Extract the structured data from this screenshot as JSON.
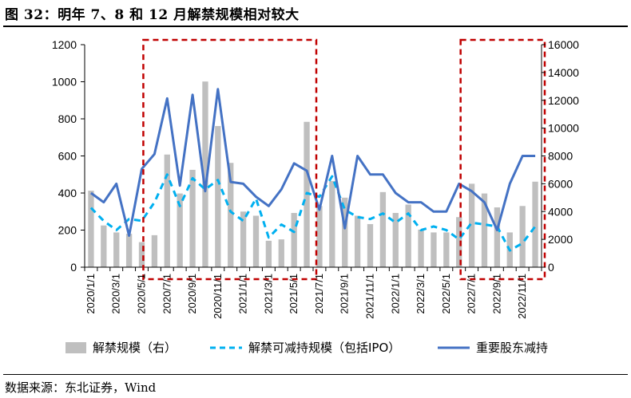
{
  "figure": {
    "title": "图 32：明年 7、8 和 12 月解禁规模相对较大",
    "source": "数据来源：东北证券，Wind"
  },
  "chart_data": {
    "type": "bar+line",
    "title": "明年 7、8 和 12 月解禁规模相对较大",
    "categories": [
      "2020/1/1",
      "2020/2/1",
      "2020/3/1",
      "2020/4/1",
      "2020/5/1",
      "2020/6/1",
      "2020/7/1",
      "2020/8/1",
      "2020/9/1",
      "2020/10/1",
      "2020/11/1",
      "2020/12/1",
      "2021/1/1",
      "2021/2/1",
      "2021/3/1",
      "2021/4/1",
      "2021/5/1",
      "2021/6/1",
      "2021/7/1",
      "2021/8/1",
      "2021/9/1",
      "2021/10/1",
      "2021/11/1",
      "2021/12/1",
      "2022/1/1",
      "2022/2/1",
      "2022/3/1",
      "2022/4/1",
      "2022/5/1",
      "2022/6/1",
      "2022/7/1",
      "2022/8/1",
      "2022/9/1",
      "2022/10/1",
      "2022/11/1",
      "2022/12/1"
    ],
    "x_tick_labels": [
      "2020/1/1",
      "2020/3/1",
      "2020/5/1",
      "2020/7/1",
      "2020/9/1",
      "2020/11/1",
      "2021/1/1",
      "2021/3/1",
      "2021/5/1",
      "2021/7/1",
      "2021/9/1",
      "2021/11/1",
      "2022/1/1",
      "2022/3/1",
      "2022/5/1",
      "2022/7/1",
      "2022/9/1",
      "2022/11/1"
    ],
    "left_axis": {
      "ylim": [
        0,
        1200
      ],
      "ticks": [
        "0",
        "200",
        "400",
        "600",
        "800",
        "1000",
        "1200"
      ]
    },
    "right_axis": {
      "ylim": [
        0,
        16000
      ],
      "ticks": [
        "0",
        "2000",
        "4000",
        "6000",
        "8000",
        "10000",
        "12000",
        "14000",
        "16000"
      ]
    },
    "series": [
      {
        "name": "解禁规模（右）",
        "type": "bar",
        "axis": "right",
        "color": "#bfbfbf",
        "values": [
          5500,
          3000,
          2500,
          2400,
          1800,
          2300,
          8100,
          5300,
          7000,
          13350,
          10150,
          7500,
          4000,
          3700,
          1900,
          2000,
          3900,
          10450,
          4400,
          6200,
          5000,
          3700,
          3100,
          5400,
          3900,
          4500,
          2700,
          2500,
          2500,
          3600,
          6000,
          5300,
          4300,
          2500,
          4400,
          6150
        ]
      },
      {
        "name": "解禁可减持规模（包括IPO）",
        "type": "line",
        "axis": "left",
        "color": "#00b0f0",
        "dash": true,
        "values": [
          320,
          250,
          200,
          260,
          250,
          350,
          500,
          330,
          480,
          420,
          470,
          300,
          250,
          370,
          160,
          230,
          190,
          400,
          380,
          490,
          310,
          270,
          260,
          290,
          240,
          290,
          200,
          220,
          200,
          150,
          240,
          230,
          220,
          90,
          130,
          220
        ]
      },
      {
        "name": "重要股东减持",
        "type": "line",
        "axis": "left",
        "color": "#4472c4",
        "values": [
          400,
          350,
          450,
          170,
          530,
          610,
          910,
          440,
          930,
          410,
          960,
          460,
          450,
          380,
          330,
          420,
          560,
          520,
          310,
          600,
          210,
          600,
          500,
          500,
          400,
          350,
          350,
          300,
          300,
          450,
          410,
          350,
          200,
          450,
          600,
          600
        ]
      }
    ],
    "highlight_boxes": [
      {
        "from": "2020/6/1",
        "to": "2021/6/1",
        "color": "#c00000",
        "style": "dashed"
      },
      {
        "from": "2022/7/1",
        "to": "2022/12/1",
        "color": "#c00000",
        "style": "dashed"
      }
    ],
    "legend_position": "bottom"
  },
  "colors": {
    "bars": "#bfbfbf",
    "dashed_line": "#00b0f0",
    "solid_line": "#4472c4",
    "highlight": "#c00000"
  }
}
